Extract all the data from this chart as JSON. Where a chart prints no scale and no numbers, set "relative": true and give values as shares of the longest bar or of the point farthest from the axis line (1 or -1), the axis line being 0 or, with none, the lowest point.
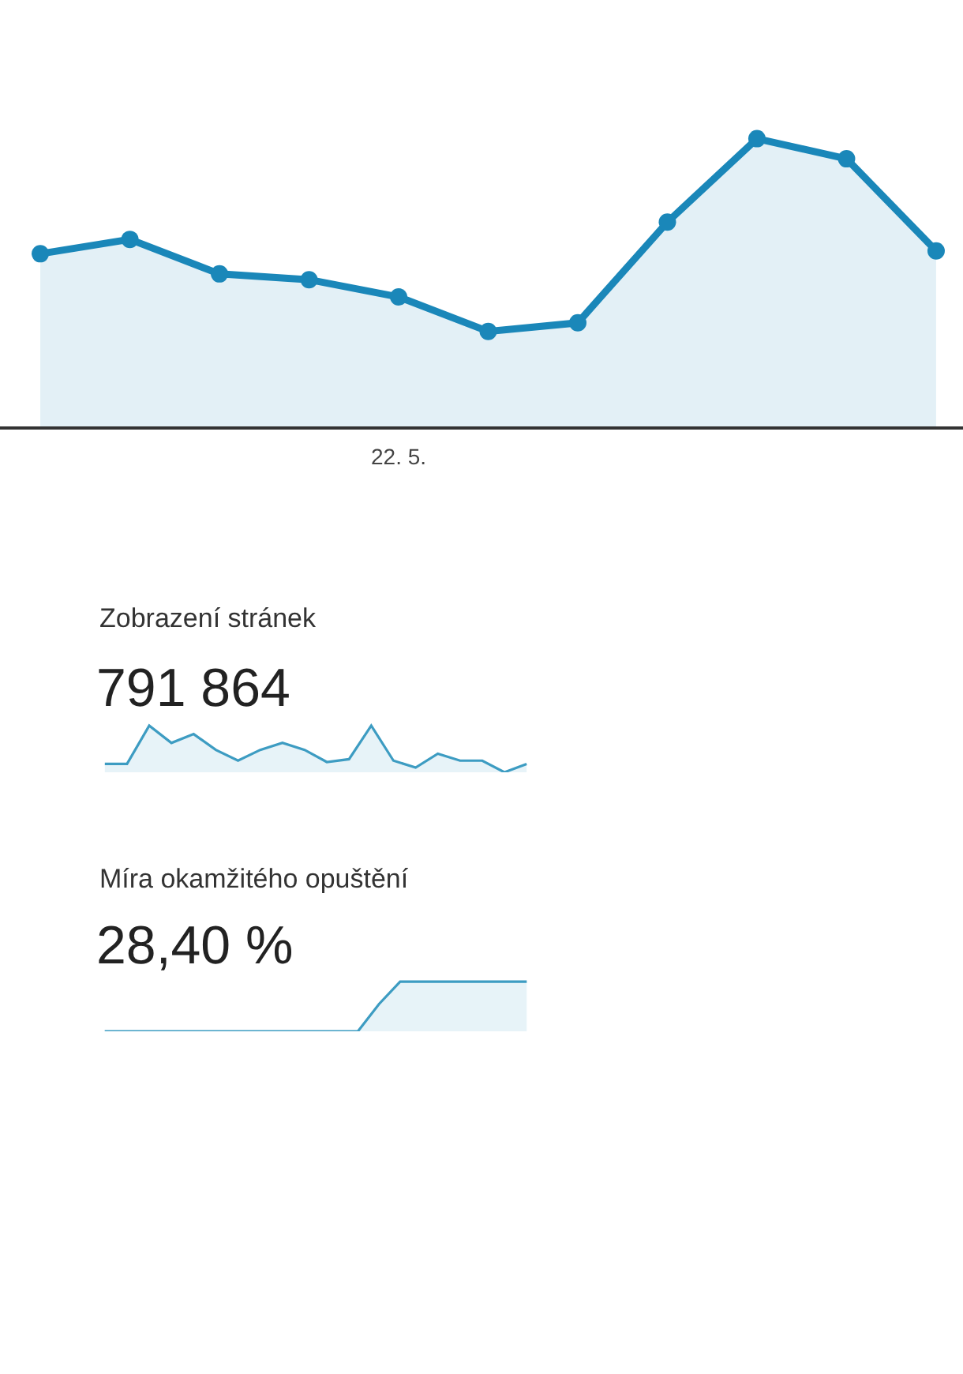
{
  "chart_data": [
    {
      "type": "area",
      "relative": true,
      "marker": "circle",
      "line_style": "solid",
      "categories": [
        null,
        null,
        null,
        null,
        null,
        null,
        null,
        null,
        null,
        null,
        null
      ],
      "annotations": [
        "22. 5."
      ],
      "series": [
        {
          "color": "#1a87b9",
          "values": [
            0.6,
            0.65,
            0.53,
            0.51,
            0.45,
            0.33,
            0.36,
            0.71,
            1.0,
            0.93,
            0.61
          ]
        }
      ]
    },
    {
      "type": "area",
      "relative": true,
      "title": "Zobrazení stránek",
      "subtitle": "791 864",
      "categories": [
        null,
        null,
        null,
        null,
        null,
        null,
        null,
        null,
        null,
        null,
        null,
        null,
        null,
        null,
        null,
        null,
        null,
        null,
        null,
        null
      ],
      "series": [
        {
          "color": "#3d9cc2",
          "values": [
            0.18,
            0.18,
            1.0,
            0.63,
            0.82,
            0.48,
            0.25,
            0.48,
            0.63,
            0.48,
            0.22,
            0.28,
            1.0,
            0.25,
            0.1,
            0.4,
            0.25,
            0.25,
            0.0,
            0.18
          ]
        }
      ]
    },
    {
      "type": "area",
      "relative": true,
      "title": "Míra okamžitého opuštění",
      "subtitle": "28,40 %",
      "categories": [
        null,
        null,
        null,
        null,
        null,
        null,
        null,
        null,
        null,
        null,
        null,
        null,
        null,
        null,
        null,
        null,
        null,
        null,
        null,
        null,
        null
      ],
      "series": [
        {
          "color": "#3d9cc2",
          "values": [
            0,
            0,
            0,
            0,
            0,
            0,
            0,
            0,
            0,
            0,
            0,
            0,
            0,
            0.55,
            1,
            1,
            1,
            1,
            1,
            1,
            1
          ]
        }
      ]
    }
  ]
}
